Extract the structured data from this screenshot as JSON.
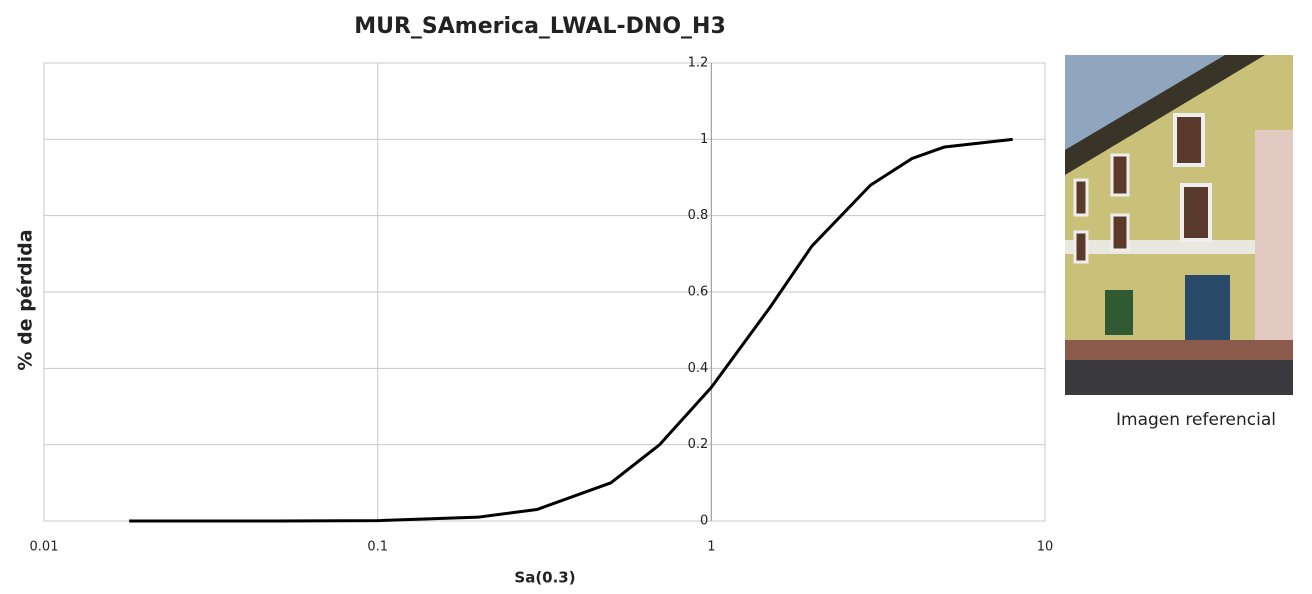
{
  "chart_data": {
    "type": "line",
    "title": "MUR_SAmerica_LWAL-DNO_H3",
    "x_label": "Sa(0.3)",
    "y_label": "% de pérdida",
    "x": [
      0.018,
      0.05,
      0.1,
      0.2,
      0.3,
      0.5,
      0.7,
      1,
      1.5,
      2,
      3,
      4,
      5,
      8
    ],
    "values": [
      0,
      0,
      0.001,
      0.01,
      0.03,
      0.1,
      0.2,
      0.35,
      0.56,
      0.72,
      0.88,
      0.95,
      0.98,
      1.0
    ],
    "color": "#000000",
    "x_log": true,
    "xlim": [
      0.01,
      10
    ],
    "xticks": [
      0.01,
      0.1,
      1,
      10
    ],
    "ylim": [
      0,
      1.2
    ],
    "yticks": [
      0,
      0.2,
      0.4,
      0.6,
      0.8,
      1,
      1.2
    ],
    "grid": true
  },
  "image_caption": "Imagen referencial"
}
